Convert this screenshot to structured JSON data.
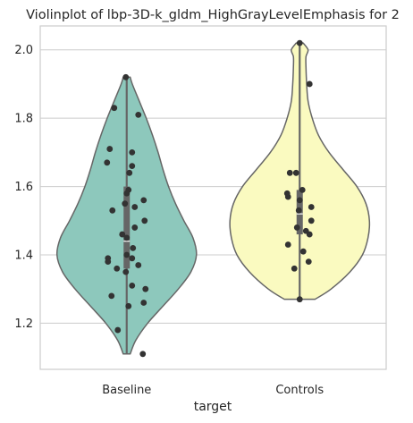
{
  "chart_data": {
    "type": "violin",
    "title": "Violinplot of lbp-3D-k_gldm_HighGrayLevelEmphasis for 2",
    "xlabel": "target",
    "ylabel": "",
    "ylim": [
      1.065,
      2.07
    ],
    "yticks": [
      1.2,
      1.4,
      1.6,
      1.8,
      2.0
    ],
    "ytick_labels": [
      "1.2",
      "1.4",
      "1.6",
      "1.8",
      "2.0"
    ],
    "grid": true,
    "categories": [
      "Baseline",
      "Controls"
    ],
    "series": [
      {
        "category": "Baseline",
        "color": "#8dc8bc",
        "min": 1.11,
        "max": 1.92,
        "q1": 1.36,
        "median": 1.44,
        "q3": 1.6,
        "density_profile": [
          [
            1.11,
            0.05
          ],
          [
            1.15,
            0.13
          ],
          [
            1.2,
            0.3
          ],
          [
            1.25,
            0.52
          ],
          [
            1.3,
            0.74
          ],
          [
            1.35,
            0.92
          ],
          [
            1.4,
            1.0
          ],
          [
            1.45,
            0.95
          ],
          [
            1.5,
            0.82
          ],
          [
            1.55,
            0.7
          ],
          [
            1.6,
            0.6
          ],
          [
            1.65,
            0.52
          ],
          [
            1.7,
            0.45
          ],
          [
            1.75,
            0.37
          ],
          [
            1.8,
            0.28
          ],
          [
            1.85,
            0.18
          ],
          [
            1.9,
            0.08
          ],
          [
            1.92,
            0.05
          ]
        ],
        "points": [
          {
            "x": -0.01,
            "y": 1.92
          },
          {
            "x": -0.14,
            "y": 1.83
          },
          {
            "x": 0.13,
            "y": 1.81
          },
          {
            "x": -0.19,
            "y": 1.71
          },
          {
            "x": 0.06,
            "y": 1.7
          },
          {
            "x": -0.22,
            "y": 1.67
          },
          {
            "x": 0.06,
            "y": 1.66
          },
          {
            "x": 0.03,
            "y": 1.64
          },
          {
            "x": 0.02,
            "y": 1.59
          },
          {
            "x": 0.0,
            "y": 1.58
          },
          {
            "x": 0.19,
            "y": 1.56
          },
          {
            "x": -0.02,
            "y": 1.55
          },
          {
            "x": 0.09,
            "y": 1.54
          },
          {
            "x": -0.16,
            "y": 1.53
          },
          {
            "x": 0.2,
            "y": 1.5
          },
          {
            "x": 0.09,
            "y": 1.48
          },
          {
            "x": -0.05,
            "y": 1.46
          },
          {
            "x": 0.0,
            "y": 1.45
          },
          {
            "x": 0.07,
            "y": 1.42
          },
          {
            "x": 0.0,
            "y": 1.4
          },
          {
            "x": -0.21,
            "y": 1.39
          },
          {
            "x": 0.06,
            "y": 1.39
          },
          {
            "x": -0.21,
            "y": 1.38
          },
          {
            "x": 0.13,
            "y": 1.37
          },
          {
            "x": -0.11,
            "y": 1.36
          },
          {
            "x": -0.01,
            "y": 1.35
          },
          {
            "x": 0.06,
            "y": 1.31
          },
          {
            "x": 0.21,
            "y": 1.3
          },
          {
            "x": -0.17,
            "y": 1.28
          },
          {
            "x": 0.19,
            "y": 1.26
          },
          {
            "x": 0.02,
            "y": 1.25
          },
          {
            "x": -0.1,
            "y": 1.18
          },
          {
            "x": 0.18,
            "y": 1.11
          }
        ]
      },
      {
        "category": "Controls",
        "color": "#fafac0",
        "min": 1.27,
        "max": 2.02,
        "q1": 1.46,
        "median": 1.52,
        "q3": 1.59,
        "density_profile": [
          [
            1.27,
            0.22
          ],
          [
            1.3,
            0.45
          ],
          [
            1.35,
            0.72
          ],
          [
            1.4,
            0.9
          ],
          [
            1.45,
            0.98
          ],
          [
            1.5,
            1.0
          ],
          [
            1.55,
            0.95
          ],
          [
            1.6,
            0.82
          ],
          [
            1.65,
            0.62
          ],
          [
            1.7,
            0.42
          ],
          [
            1.75,
            0.27
          ],
          [
            1.8,
            0.18
          ],
          [
            1.85,
            0.12
          ],
          [
            1.9,
            0.1
          ],
          [
            1.95,
            0.09
          ],
          [
            1.98,
            0.09
          ],
          [
            2.0,
            0.12
          ],
          [
            2.02,
            0.05
          ]
        ],
        "points": [
          {
            "x": 0.0,
            "y": 2.02
          },
          {
            "x": 0.11,
            "y": 1.9
          },
          {
            "x": -0.11,
            "y": 1.64
          },
          {
            "x": -0.04,
            "y": 1.64
          },
          {
            "x": 0.03,
            "y": 1.59
          },
          {
            "x": -0.14,
            "y": 1.58
          },
          {
            "x": -0.13,
            "y": 1.57
          },
          {
            "x": 0.0,
            "y": 1.56
          },
          {
            "x": 0.13,
            "y": 1.54
          },
          {
            "x": -0.01,
            "y": 1.53
          },
          {
            "x": 0.13,
            "y": 1.5
          },
          {
            "x": -0.03,
            "y": 1.48
          },
          {
            "x": 0.07,
            "y": 1.47
          },
          {
            "x": 0.11,
            "y": 1.46
          },
          {
            "x": -0.13,
            "y": 1.43
          },
          {
            "x": 0.04,
            "y": 1.41
          },
          {
            "x": 0.1,
            "y": 1.38
          },
          {
            "x": -0.06,
            "y": 1.36
          },
          {
            "x": 0.0,
            "y": 1.27
          }
        ]
      }
    ]
  }
}
